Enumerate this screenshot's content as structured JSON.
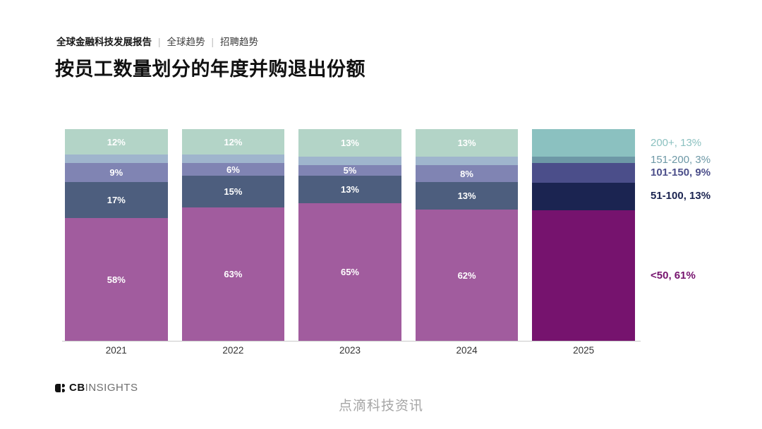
{
  "header": {
    "report_name": "全球金融科技发展报告",
    "separator": "|",
    "nav_item_1": "全球趋势",
    "nav_item_2": "招聘趋势"
  },
  "title": "按员工数量划分的年度并购退出份额",
  "chart_data": {
    "type": "bar",
    "stacked": true,
    "units": "percent",
    "categories": [
      "2021",
      "2022",
      "2023",
      "2024",
      "2025"
    ],
    "highlight_index": 4,
    "series": [
      {
        "name": "200+",
        "values": [
          12,
          12,
          13,
          13,
          13
        ],
        "muted_color": "#b3d4c7",
        "accent_color": "#8bc1c0"
      },
      {
        "name": "151-200",
        "values": [
          4,
          4,
          4,
          4,
          3
        ],
        "muted_color": "#9fb5cd",
        "accent_color": "#6d98a6"
      },
      {
        "name": "101-150",
        "values": [
          9,
          6,
          5,
          8,
          9
        ],
        "muted_color": "#8084b3",
        "accent_color": "#4b4e8a"
      },
      {
        "name": "51-100",
        "values": [
          17,
          15,
          13,
          13,
          13
        ],
        "muted_color": "#4d5e7e",
        "accent_color": "#1b2451"
      },
      {
        "name": "<50",
        "values": [
          58,
          63,
          65,
          62,
          61
        ],
        "muted_color": "#a15c9e",
        "accent_color": "#76136e"
      }
    ],
    "segment_labels": [
      [
        "12%",
        "",
        "9%",
        "17%",
        "58%"
      ],
      [
        "12%",
        "",
        "6%",
        "15%",
        "63%"
      ],
      [
        "13%",
        "",
        "5%",
        "13%",
        "65%"
      ],
      [
        "13%",
        "",
        "8%",
        "13%",
        "62%"
      ],
      [
        "",
        "",
        "",
        "",
        ""
      ]
    ],
    "legend": [
      {
        "label": "200+, 13%",
        "weight": "400"
      },
      {
        "label": "151-200, 3%",
        "weight": "400"
      },
      {
        "label": "101-150, 9%",
        "weight": "600"
      },
      {
        "label": "51-100, 13%",
        "weight": "700"
      },
      {
        "label": "<50, 61%",
        "weight": "700"
      }
    ],
    "legend_position": "right",
    "ylim": [
      0,
      100
    ],
    "grid": false,
    "label_text_color": "#ffffff",
    "axis_line_color": "#c9c9c9"
  },
  "footer": {
    "logo_bold": "CB",
    "logo_light": "INSIGHTS",
    "watermark": "点滴科技资讯"
  }
}
